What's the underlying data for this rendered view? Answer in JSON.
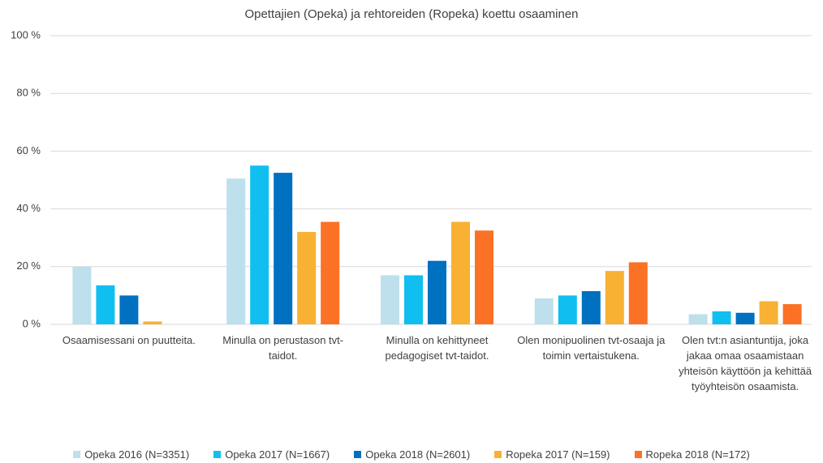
{
  "chart_data": {
    "type": "bar",
    "title": "Opettajien (Opeka) ja rehtoreiden (Ropeka) koettu osaaminen",
    "categories": [
      "Osaamisessani on puutteita.",
      "Minulla on perustason tvt-taidot.",
      "Minulla on kehittyneet pedagogiset tvt-taidot.",
      "Olen monipuolinen tvt-osaaja ja toimin vertaistukena.",
      "Olen tvt:n asiantuntija, joka jakaa omaa osaamistaan yhteisön käyttöön ja kehittää työyhteisön osaamista."
    ],
    "series": [
      {
        "name": "Opeka 2016 (N=3351)",
        "color": "#bde0ec",
        "values": [
          20,
          50.5,
          17,
          9,
          3.5
        ]
      },
      {
        "name": "Opeka 2017 (N=1667)",
        "color": "#10bff0",
        "values": [
          13.5,
          55,
          17,
          10,
          4.5
        ]
      },
      {
        "name": "Opeka 2018 (N=2601)",
        "color": "#0070c0",
        "values": [
          10,
          52.5,
          22,
          11.5,
          4
        ]
      },
      {
        "name": "Ropeka 2017 (N=159)",
        "color": "#f8b133",
        "values": [
          1,
          32,
          35.5,
          18.5,
          8
        ]
      },
      {
        "name": "Ropeka 2018 (N=172)",
        "color": "#fb7125",
        "values": [
          0,
          35.5,
          32.5,
          21.5,
          7
        ]
      }
    ],
    "ylim": [
      0,
      100
    ],
    "yticks": [
      {
        "value": 0,
        "label": "0 %"
      },
      {
        "value": 20,
        "label": "20 %"
      },
      {
        "value": 40,
        "label": "40 %"
      },
      {
        "value": 60,
        "label": "60 %"
      },
      {
        "value": 80,
        "label": "80 %"
      },
      {
        "value": 100,
        "label": "100 %"
      }
    ],
    "grid": true,
    "legend": "bottom"
  }
}
